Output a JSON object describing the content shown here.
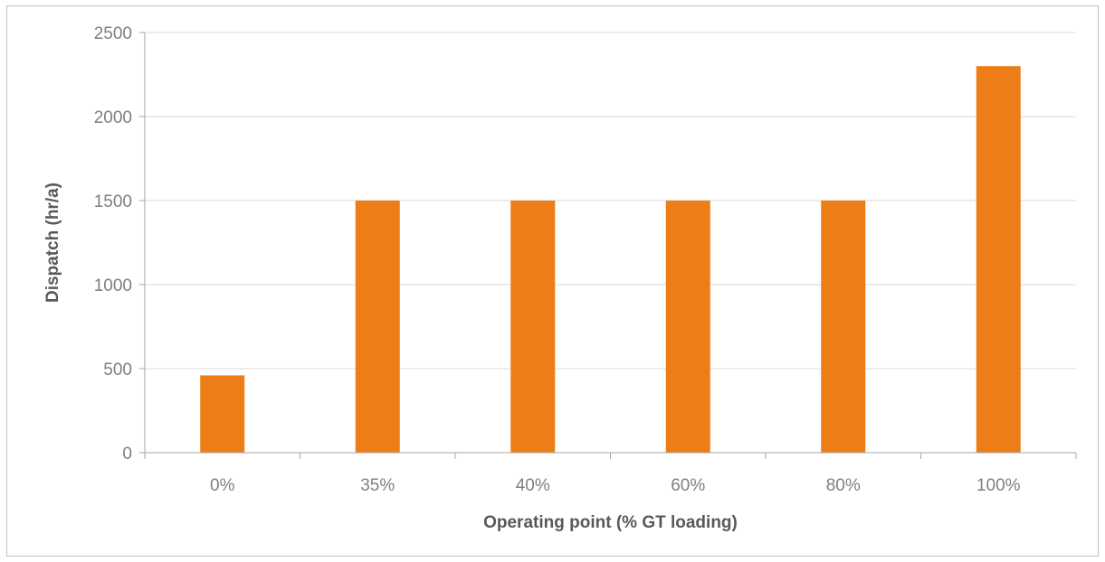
{
  "chart_data": {
    "type": "bar",
    "title": "",
    "xlabel": "Operating point (% GT loading)",
    "ylabel": "Dispatch (hr/a)",
    "categories": [
      "0%",
      "35%",
      "40%",
      "60%",
      "80%",
      "100%"
    ],
    "values": [
      460,
      1500,
      1500,
      1500,
      1500,
      2300
    ],
    "ylim": [
      0,
      2500
    ],
    "yticks": [
      0,
      500,
      1000,
      1500,
      2000,
      2500
    ],
    "grid": true,
    "legend": "none",
    "bar_color": "#ED7D17",
    "grid_color": "#D9D9D9",
    "axis_color": "#A6A6A6"
  }
}
